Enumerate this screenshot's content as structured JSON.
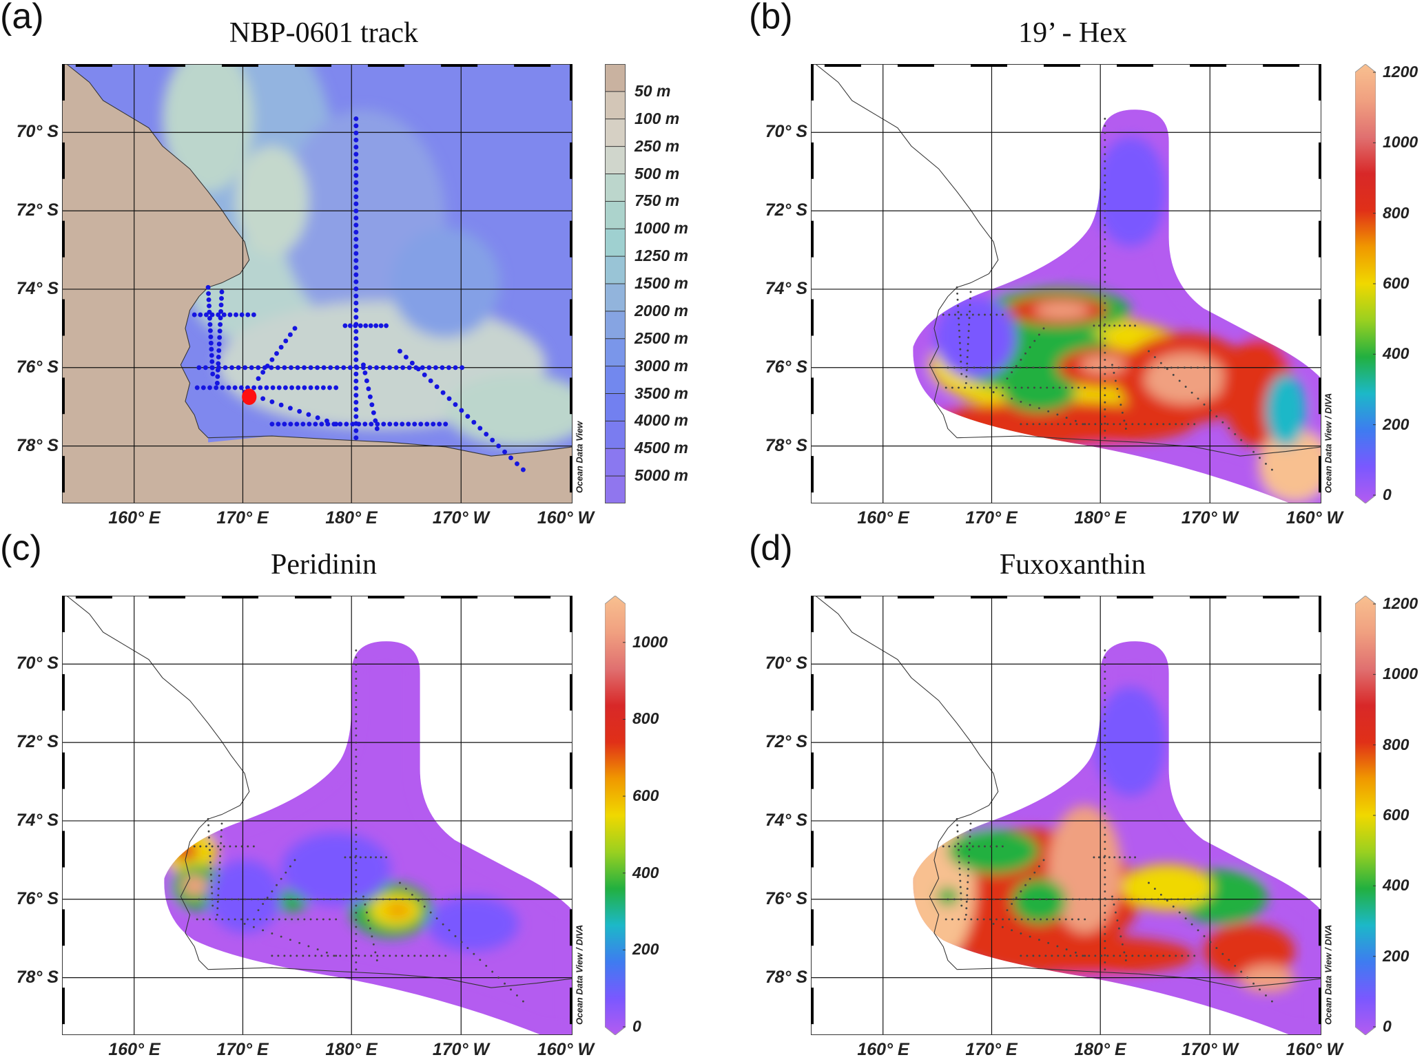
{
  "panels": [
    {
      "label": "(a)",
      "title": "NBP-0601 track",
      "watermark": "Ocean Data View",
      "lat_labels": [
        "70° S",
        "72° S",
        "74° S",
        "76° S",
        "78° S"
      ],
      "lon_labels": [
        "160° E",
        "170° E",
        "180° E",
        "170° W",
        "160° W"
      ],
      "colorbar": {
        "type": "bathymetry",
        "labels": [
          "50 m",
          "100 m",
          "250 m",
          "500 m",
          "750 m",
          "1000 m",
          "1250 m",
          "1500 m",
          "2000 m",
          "2500 m",
          "3000 m",
          "3500 m",
          "4000 m",
          "4500 m",
          "5000 m"
        ],
        "colors": [
          "#c9b2a0",
          "#d3c6b7",
          "#d6d0c4",
          "#d0d6cc",
          "#bcd6cc",
          "#acd3cc",
          "#9fd0d0",
          "#99c4d6",
          "#92b4dc",
          "#86a4e2",
          "#7a96ea",
          "#7288ee",
          "#7280f0",
          "#7a7cf0",
          "#8a78f0",
          "#9076ee"
        ]
      },
      "marker_color": "#1515e0",
      "highlight_color": "#ff1010"
    },
    {
      "label": "(b)",
      "title": "19’ - Hex",
      "watermark": "Ocean Data View / DIVA",
      "lat_labels": [
        "70° S",
        "72° S",
        "74° S",
        "76° S",
        "78° S"
      ],
      "lon_labels": [
        "160° E",
        "170° E",
        "180° E",
        "170° W",
        "160° W"
      ],
      "colorbar": {
        "type": "continuous",
        "min": 0,
        "max": 1200,
        "labels": [
          "1200",
          "1000",
          "800",
          "600",
          "400",
          "200",
          "0"
        ]
      }
    },
    {
      "label": "(c)",
      "title": "Peridinin",
      "watermark": "Ocean Data View / DIVA",
      "lat_labels": [
        "70° S",
        "72° S",
        "74° S",
        "76° S",
        "78° S"
      ],
      "lon_labels": [
        "160° E",
        "170° E",
        "180° E",
        "170° W",
        "160° W"
      ],
      "colorbar": {
        "type": "continuous",
        "min": 0,
        "max": 1100,
        "labels": [
          "1000",
          "800",
          "600",
          "400",
          "200",
          "0"
        ]
      }
    },
    {
      "label": "(d)",
      "title": "Fuxoxanthin",
      "watermark": "Ocean Data View / DIVA",
      "lat_labels": [
        "70° S",
        "72° S",
        "74° S",
        "76° S",
        "78° S"
      ],
      "lon_labels": [
        "160° E",
        "170° E",
        "180° E",
        "170° W",
        "160° W"
      ],
      "colorbar": {
        "type": "continuous",
        "min": 0,
        "max": 1200,
        "labels": [
          "1200",
          "1000",
          "800",
          "600",
          "400",
          "200",
          "0"
        ]
      }
    }
  ],
  "colorscale": [
    "#b45cf0",
    "#7a58ff",
    "#3e7cf0",
    "#1cb8c8",
    "#22b040",
    "#9ad020",
    "#f0d800",
    "#f09800",
    "#e03018",
    "#d82828",
    "#e07070",
    "#f0a080",
    "#f8c090"
  ]
}
